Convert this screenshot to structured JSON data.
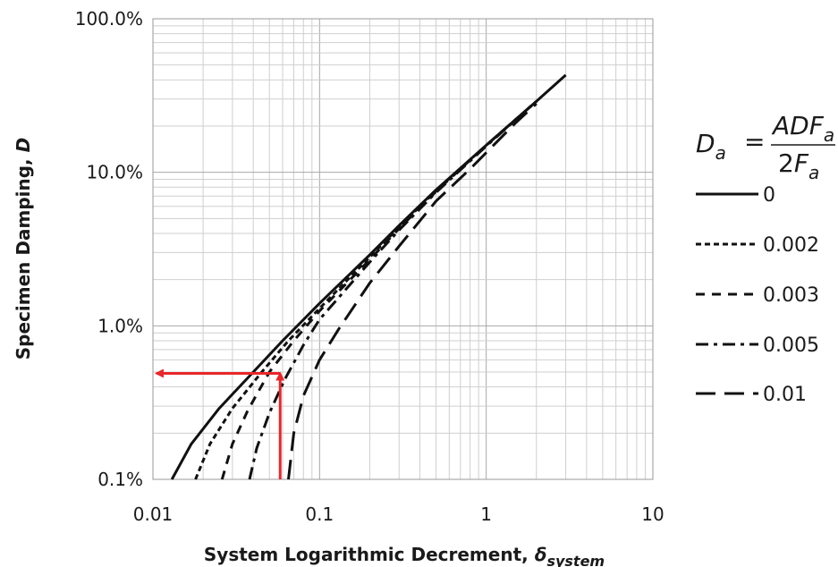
{
  "chart_data": {
    "type": "line",
    "xscale": "log",
    "yscale": "log",
    "xlim": [
      0.01,
      10
    ],
    "ylim": [
      0.1,
      100
    ],
    "grid": true,
    "xticks": [
      {
        "value": 0.01,
        "label": "0.01"
      },
      {
        "value": 0.1,
        "label": "0.1"
      },
      {
        "value": 1,
        "label": "1"
      },
      {
        "value": 10,
        "label": "10"
      }
    ],
    "yticks": [
      {
        "value": 0.1,
        "label": "0.1%"
      },
      {
        "value": 1,
        "label": "1.0%"
      },
      {
        "value": 10,
        "label": "10.0%"
      },
      {
        "value": 100,
        "label": "100.0%"
      }
    ],
    "xlabel_main": "System Logarithmic Decrement, ",
    "xlabel_symbol": "δ",
    "xlabel_sub": "system",
    "ylabel_main": "Specimen Damping, ",
    "ylabel_symbol": "D",
    "legend_title": {
      "lhs_symbol": "D",
      "lhs_sub": "a",
      "equals": "=",
      "numerator": "ADF",
      "numerator_sub": "a",
      "denominator_num": "2",
      "denominator": "F",
      "denominator_sub": "a"
    },
    "legend_placement": "right",
    "series": [
      {
        "name": "0",
        "dash": "solid",
        "x": [
          0.013,
          0.017,
          0.025,
          0.04,
          0.06,
          0.1,
          0.2,
          0.3,
          0.5,
          1.0,
          2.0,
          3.0
        ],
        "y": [
          0.1,
          0.17,
          0.29,
          0.5,
          0.8,
          1.4,
          2.9,
          4.5,
          7.7,
          15,
          29,
          43
        ]
      },
      {
        "name": "0.002",
        "dash": "short",
        "x": [
          0.018,
          0.022,
          0.03,
          0.045,
          0.065,
          0.1,
          0.2,
          0.3,
          0.5,
          1.0,
          2.0
        ],
        "y": [
          0.1,
          0.17,
          0.29,
          0.5,
          0.8,
          1.3,
          2.8,
          4.4,
          7.6,
          15,
          29
        ]
      },
      {
        "name": "0.003",
        "dash": "medium",
        "x": [
          0.026,
          0.03,
          0.037,
          0.05,
          0.07,
          0.1,
          0.2,
          0.3,
          0.5,
          1.0,
          2.0
        ],
        "y": [
          0.1,
          0.17,
          0.28,
          0.5,
          0.8,
          1.25,
          2.7,
          4.3,
          7.5,
          15,
          29
        ]
      },
      {
        "name": "0.005",
        "dash": "dashdot",
        "x": [
          0.038,
          0.042,
          0.05,
          0.062,
          0.08,
          0.1,
          0.2,
          0.3,
          0.5,
          1.0,
          2.0
        ],
        "y": [
          0.1,
          0.16,
          0.27,
          0.45,
          0.75,
          1.1,
          2.6,
          4.2,
          7.4,
          14.8,
          29
        ]
      },
      {
        "name": "0.01",
        "dash": "long",
        "x": [
          0.065,
          0.07,
          0.08,
          0.1,
          0.13,
          0.2,
          0.3,
          0.5,
          0.8,
          1.5,
          2.0
        ],
        "y": [
          0.1,
          0.2,
          0.35,
          0.6,
          0.95,
          1.9,
          3.3,
          6.5,
          10.5,
          21,
          28
        ]
      }
    ],
    "annotations": [
      {
        "type": "arrow",
        "color": "#e8272a",
        "from": [
          0.058,
          0.1
        ],
        "to": [
          0.058,
          0.49
        ]
      },
      {
        "type": "arrow",
        "color": "#e8272a",
        "from": [
          0.058,
          0.49
        ],
        "to": [
          0.0105,
          0.49
        ]
      }
    ]
  }
}
